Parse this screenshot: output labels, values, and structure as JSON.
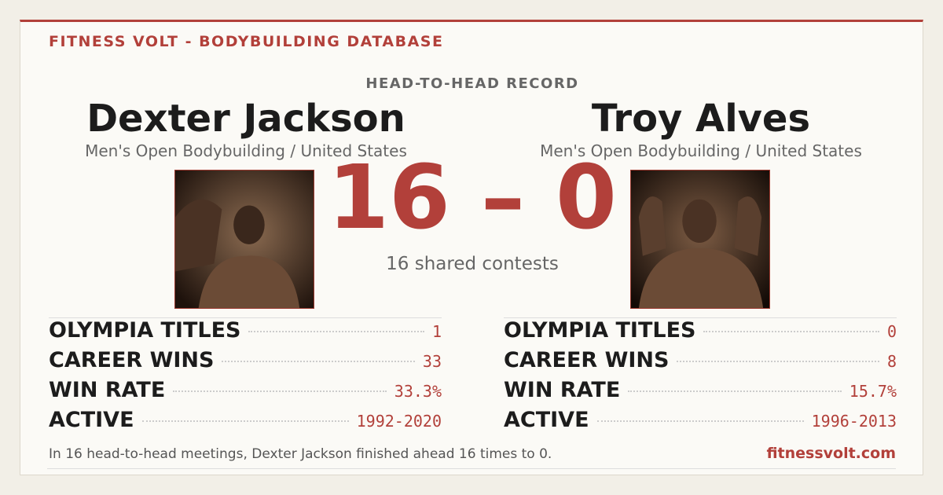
{
  "header": {
    "brand": "FITNESS VOLT - BODYBUILDING DATABASE",
    "subtitle": "HEAD-TO-HEAD RECORD"
  },
  "players": [
    {
      "name": "Dexter Jackson",
      "division": "Men's Open Bodybuilding / United States",
      "stats": [
        {
          "label": "OLYMPIA TITLES",
          "value": "1"
        },
        {
          "label": "CAREER WINS",
          "value": "33"
        },
        {
          "label": "WIN RATE",
          "value": "33.3%"
        },
        {
          "label": "ACTIVE",
          "value": "1992-2020"
        }
      ]
    },
    {
      "name": "Troy Alves",
      "division": "Men's Open Bodybuilding / United States",
      "stats": [
        {
          "label": "OLYMPIA TITLES",
          "value": "0"
        },
        {
          "label": "CAREER WINS",
          "value": "8"
        },
        {
          "label": "WIN RATE",
          "value": "15.7%"
        },
        {
          "label": "ACTIVE",
          "value": "1996-2013"
        }
      ]
    }
  ],
  "score": {
    "left": "16",
    "separator": "–",
    "right": "0",
    "caption": "16 shared contests"
  },
  "footer": {
    "summary": "In 16 head-to-head meetings, Dexter Jackson finished ahead 16 times to 0.",
    "site": "fitnessvolt.com"
  }
}
